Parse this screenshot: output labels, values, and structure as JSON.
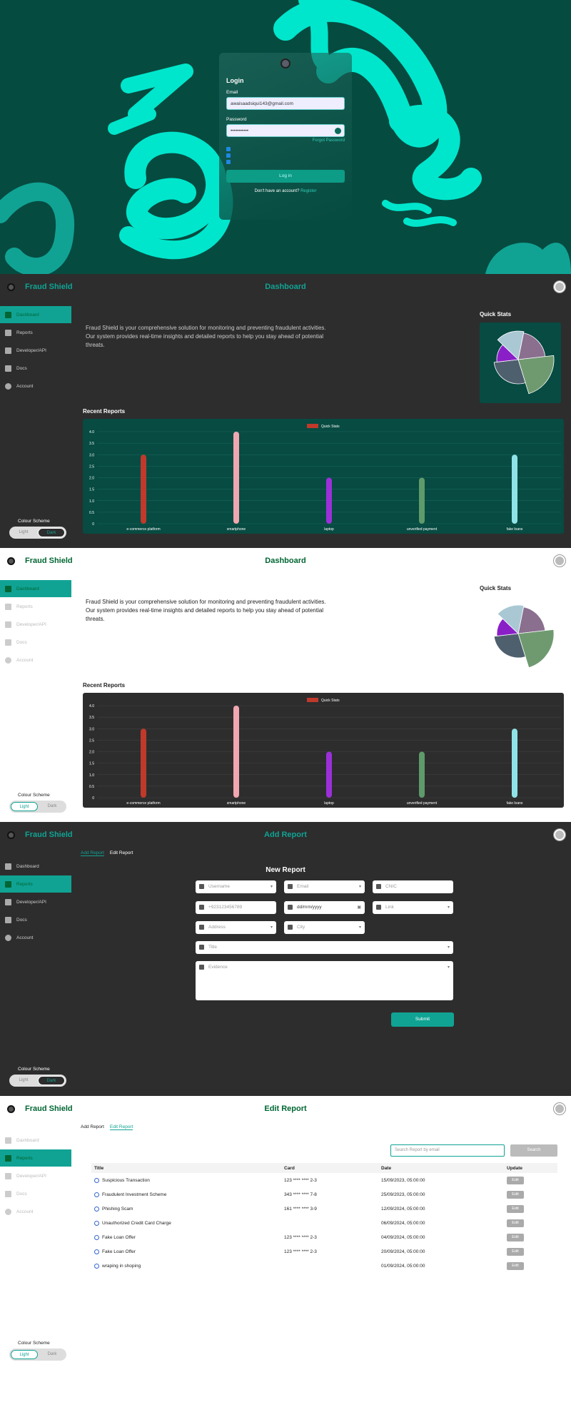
{
  "login": {
    "title": "Login",
    "email_label": "Email",
    "email_value": "awaisaadsiqui143@gmail.com",
    "password_label": "Password",
    "password_value": "•••••••••••",
    "forgot": "Forgot Password",
    "checks": [
      "",
      "",
      ""
    ],
    "button": "Log in",
    "no_account": "Don't have an account?",
    "register": "Register"
  },
  "brand": "Fraud Shield",
  "nav": {
    "items": [
      "Dashboard",
      "Reports",
      "Developer/API",
      "Docs",
      "Account"
    ]
  },
  "scheme": {
    "title": "Colour Scheme",
    "light": "Light",
    "dark": "Dark"
  },
  "dashboard": {
    "title": "Dashboard",
    "intro": "Fraud Shield is your comprehensive solution for monitoring and preventing fraudulent activities. Our system provides real-time insights and detailed reports to help you stay ahead of potential threats.",
    "quick_stats": "Quick Stats",
    "recent_reports": "Recent Reports"
  },
  "colors": {
    "accent": "#10a394",
    "dark_bg": "#2d2d2d",
    "login_bg": "#064b40",
    "chart_bg_dark": "#074b42"
  },
  "chart_data": {
    "type": "bar",
    "legend": "Quick Stats",
    "categories": [
      "e-commerce platform",
      "smartphone",
      "laptop",
      "unverified payment",
      "fake loans"
    ],
    "values": [
      3,
      4,
      2,
      2,
      3
    ],
    "colors": [
      "#c0392b",
      "#f1a7b0",
      "#9b30d9",
      "#5e9a6a",
      "#8fe3e8"
    ],
    "ylim": [
      0,
      4
    ],
    "yticks": [
      "0",
      "0.5",
      "1.0",
      "1.5",
      "2.0",
      "2.5",
      "3.0",
      "3.5",
      "4.0"
    ],
    "pie": {
      "values": [
        20,
        22,
        28,
        14,
        16
      ],
      "colors": [
        "#8a6f8f",
        "#6f9a70",
        "#4e5f6e",
        "#8a1fc8",
        "#a9c8d4"
      ]
    }
  },
  "add_report": {
    "title": "Add Report",
    "tab_add": "Add Report",
    "tab_edit": "Edit Report",
    "heading": "New Report",
    "fields": {
      "username": "Username",
      "email": "Email",
      "cnic": "CNIC",
      "phone": "+923123456789",
      "date": "dd/mm/yyyy",
      "link": "Link",
      "address": "Address",
      "city": "City",
      "title": "Title",
      "evidence": "Evidence"
    },
    "submit": "Submit"
  },
  "edit_report": {
    "title": "Edit Report",
    "search_placeholder": "Search Report by email",
    "search": "Search",
    "columns": [
      "Title",
      "Card",
      "Date",
      "Update"
    ],
    "rows": [
      {
        "title": "Suspicious Transaction",
        "card": "123 **** **** 2-3",
        "date": "15/09/2023, 05:00:00",
        "update": "Edit"
      },
      {
        "title": "Fraudulent Investment Scheme",
        "card": "343 **** **** 7-8",
        "date": "25/09/2023, 05:00:00",
        "update": "Edit"
      },
      {
        "title": "Phishing Scam",
        "card": "161 **** **** 3-9",
        "date": "12/09/2024, 05:00:00",
        "update": "Edit"
      },
      {
        "title": "Unauthorized Credit Card Charge",
        "card": "",
        "date": "06/09/2024, 05:00:00",
        "update": "Edit"
      },
      {
        "title": "Fake Loan Offer",
        "card": "123 **** **** 2-3",
        "date": "04/09/2024, 05:00:00",
        "update": "Edit"
      },
      {
        "title": "Fake Loan Offer",
        "card": "123 **** **** 2-3",
        "date": "20/09/2024, 05:00:00",
        "update": "Edit"
      },
      {
        "title": "wraping in shoping",
        "card": "",
        "date": "01/09/2024, 05:00:00",
        "update": "Edit"
      }
    ]
  }
}
